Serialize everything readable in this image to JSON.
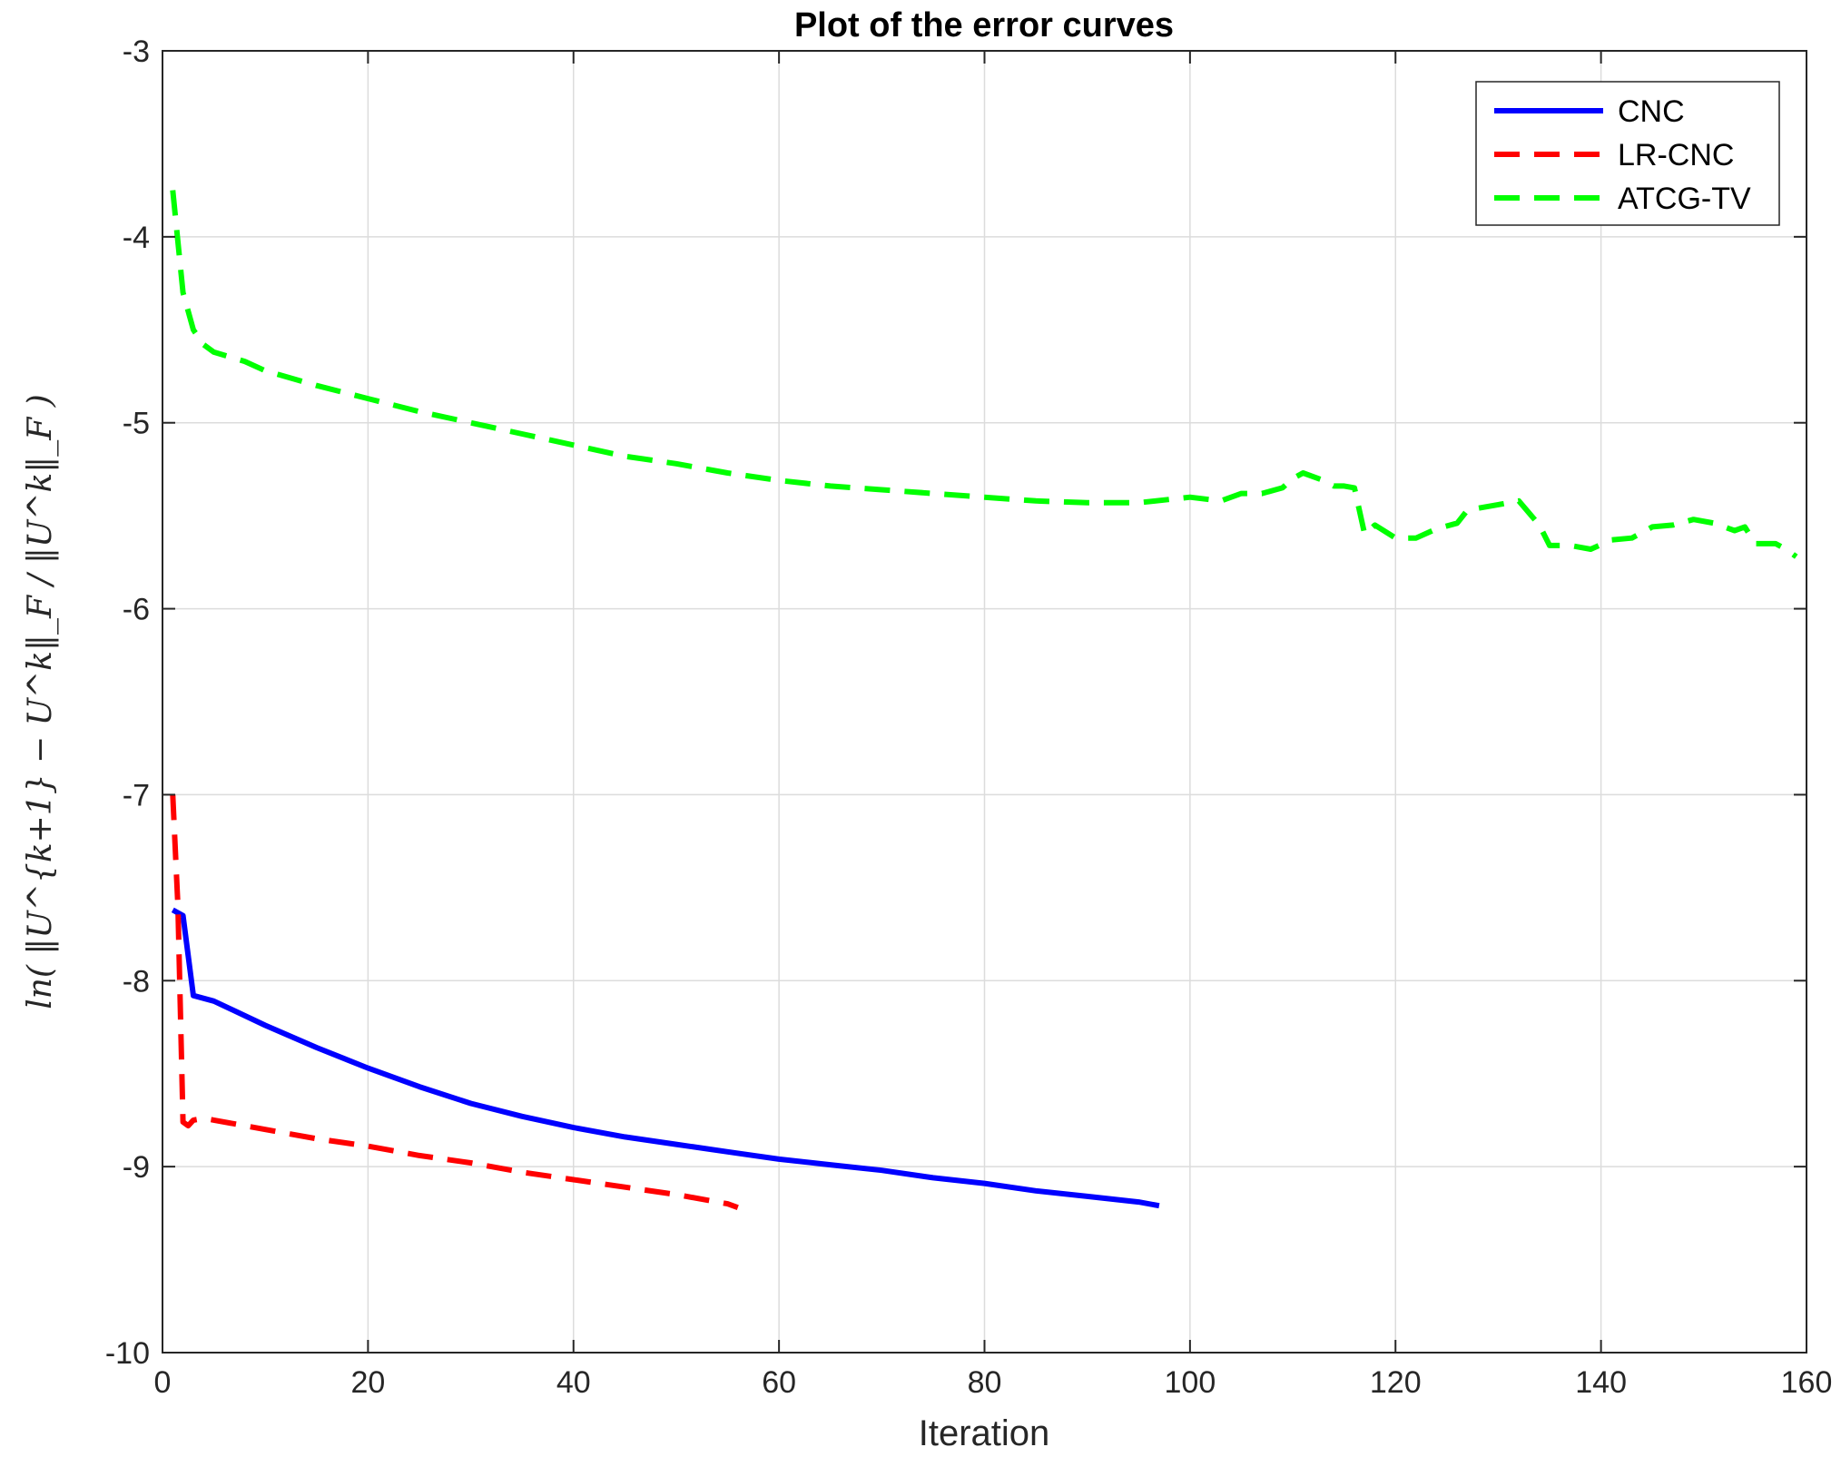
{
  "chart_data": {
    "type": "line",
    "title": "Plot of the error curves",
    "xlabel": "Iteration",
    "ylabel": "ln( ‖U^{k+1} − U^k‖_F / ‖U^k‖_F )",
    "xlim": [
      0,
      160
    ],
    "ylim": [
      -10,
      -3
    ],
    "xticks": [
      0,
      20,
      40,
      60,
      80,
      100,
      120,
      140,
      160
    ],
    "yticks": [
      -10,
      -9,
      -8,
      -7,
      -6,
      -5,
      -4,
      -3
    ],
    "xtick_labels": [
      "0",
      "20",
      "40",
      "60",
      "80",
      "100",
      "120",
      "140",
      "160"
    ],
    "ytick_labels": [
      "-10",
      "-9",
      "-8",
      "-7",
      "-6",
      "-5",
      "-4",
      "-3"
    ],
    "grid": true,
    "legend_position": "top-right",
    "series": [
      {
        "name": "CNC",
        "color": "#0000ff",
        "style": "solid",
        "x": [
          1,
          2,
          3,
          5,
          10,
          15,
          20,
          25,
          30,
          35,
          40,
          45,
          50,
          55,
          60,
          65,
          70,
          75,
          80,
          85,
          90,
          95,
          97
        ],
        "y": [
          -7.62,
          -7.65,
          -8.08,
          -8.11,
          -8.24,
          -8.36,
          -8.47,
          -8.57,
          -8.66,
          -8.73,
          -8.79,
          -8.84,
          -8.88,
          -8.92,
          -8.96,
          -8.99,
          -9.02,
          -9.06,
          -9.09,
          -9.13,
          -9.16,
          -9.19,
          -9.21
        ]
      },
      {
        "name": "LR-CNC",
        "color": "#ff0000",
        "style": "dashed",
        "x": [
          1,
          1.5,
          2,
          2.5,
          3,
          4,
          5,
          10,
          15,
          20,
          25,
          30,
          35,
          40,
          45,
          50,
          55,
          56
        ],
        "y": [
          -7.0,
          -7.6,
          -8.76,
          -8.78,
          -8.75,
          -8.74,
          -8.75,
          -8.8,
          -8.85,
          -8.89,
          -8.94,
          -8.98,
          -9.03,
          -9.07,
          -9.11,
          -9.15,
          -9.2,
          -9.22
        ]
      },
      {
        "name": "ATCG-TV",
        "color": "#00ff00",
        "style": "dashed",
        "x": [
          1,
          2,
          3,
          4,
          5,
          8,
          10,
          15,
          20,
          25,
          30,
          35,
          40,
          45,
          50,
          55,
          60,
          65,
          70,
          75,
          80,
          85,
          90,
          95,
          100,
          103,
          105,
          107,
          109,
          110,
          111,
          113,
          114,
          115,
          116,
          117,
          118,
          120,
          122,
          124,
          126,
          127,
          128,
          130,
          132,
          134,
          135,
          137,
          139,
          141,
          143,
          145,
          147,
          149,
          151,
          153,
          154,
          155,
          157,
          158,
          159
        ],
        "y": [
          -3.75,
          -4.3,
          -4.5,
          -4.58,
          -4.62,
          -4.67,
          -4.72,
          -4.8,
          -4.87,
          -4.94,
          -5.0,
          -5.06,
          -5.12,
          -5.18,
          -5.22,
          -5.27,
          -5.31,
          -5.34,
          -5.36,
          -5.38,
          -5.4,
          -5.42,
          -5.43,
          -5.43,
          -5.4,
          -5.42,
          -5.38,
          -5.38,
          -5.35,
          -5.3,
          -5.27,
          -5.31,
          -5.34,
          -5.34,
          -5.35,
          -5.6,
          -5.55,
          -5.62,
          -5.62,
          -5.57,
          -5.54,
          -5.47,
          -5.46,
          -5.44,
          -5.42,
          -5.55,
          -5.66,
          -5.66,
          -5.68,
          -5.63,
          -5.62,
          -5.56,
          -5.55,
          -5.52,
          -5.54,
          -5.58,
          -5.56,
          -5.65,
          -5.65,
          -5.68,
          -5.72
        ]
      }
    ]
  }
}
